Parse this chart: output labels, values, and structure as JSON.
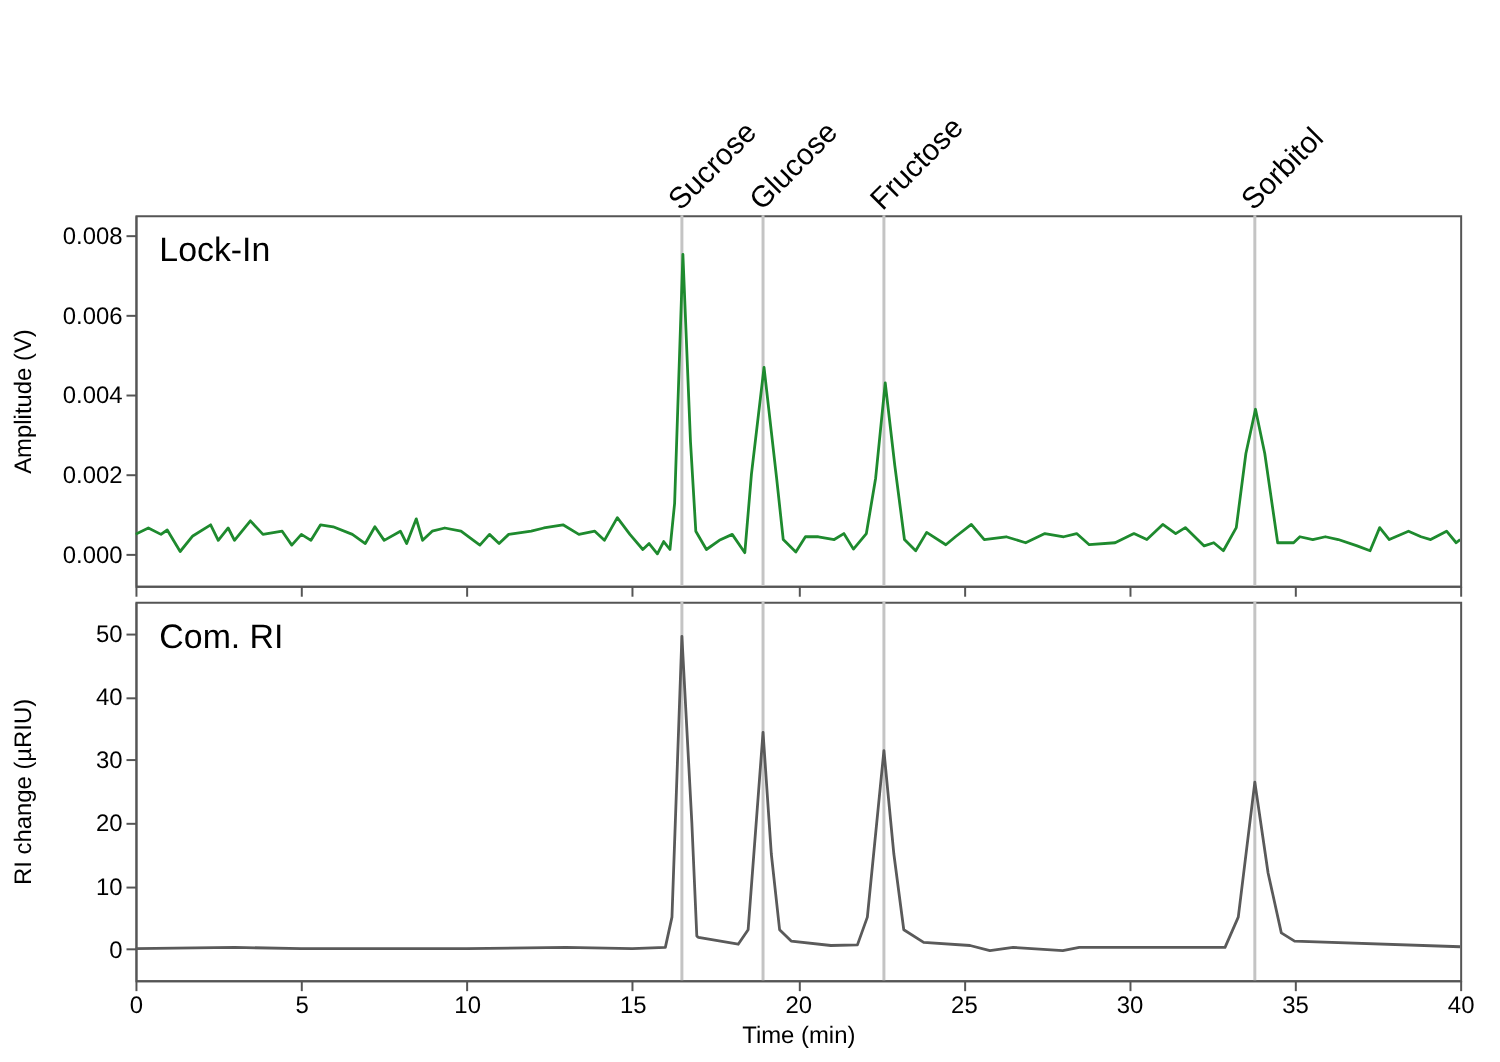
{
  "chart_data": [
    {
      "type": "line",
      "title": "Lock-In",
      "ylabel": "Amplitude (V)",
      "xlim": [
        0,
        40
      ],
      "xticks": [
        0,
        5,
        10,
        15,
        20,
        25,
        30,
        35,
        40
      ],
      "ylim": [
        -0.0008,
        0.0085
      ],
      "yticks": [
        {
          "value": 0,
          "label": "0.000"
        },
        0.002,
        0.004,
        0.006,
        0.008
      ],
      "tick_labels": "y",
      "grid": false,
      "marker": "none",
      "line_style": "solid",
      "series": [
        {
          "color": "#1e8a2e",
          "x": [
            0,
            0.39,
            0.77,
            0.96,
            1.35,
            1.73,
            2.27,
            2.5,
            2.8,
            2.99,
            3.47,
            3.85,
            4.43,
            4.72,
            5.01,
            5.3,
            5.59,
            5.97,
            6.55,
            6.94,
            7.23,
            7.51,
            8.0,
            8.19,
            8.48,
            8.67,
            8.96,
            9.34,
            9.83,
            10.4,
            10.69,
            10.98,
            11.27,
            11.95,
            12.33,
            12.91,
            13.39,
            13.87,
            14.16,
            14.55,
            14.93,
            15.32,
            15.51,
            15.76,
            15.95,
            16.14,
            16.28,
            16.53,
            16.76,
            16.92,
            17.24,
            17.63,
            18.02,
            18.4,
            18.6,
            18.98,
            19.36,
            19.56,
            19.94,
            20.23,
            20.62,
            21.1,
            21.39,
            21.68,
            22.07,
            22.35,
            22.64,
            22.93,
            23.22,
            23.56,
            23.89,
            24.47,
            24.76,
            25.24,
            25.63,
            26.29,
            26.88,
            27.46,
            28.03,
            28.42,
            28.8,
            29.58,
            30.15,
            30.54,
            31.02,
            31.41,
            31.7,
            32.27,
            32.56,
            32.85,
            33.24,
            33.53,
            33.82,
            34.1,
            34.49,
            34.97,
            35.16,
            35.55,
            35.93,
            36.32,
            36.89,
            37.28,
            37.57,
            37.86,
            38.44,
            38.82,
            39.11,
            39.59,
            39.88,
            40
          ],
          "values": [
            0.00049,
            0.00065,
            0.00049,
            0.0006,
            6e-05,
            0.00045,
            0.00073,
            0.00034,
            0.00065,
            0.00034,
            0.00083,
            0.00049,
            0.00057,
            0.00022,
            0.00049,
            0.00034,
            0.00073,
            0.00068,
            0.00049,
            0.00026,
            0.00068,
            0.00034,
            0.00057,
            0.00026,
            0.00088,
            0.00034,
            0.00057,
            0.00065,
            0.00057,
            0.00022,
            0.00049,
            0.00026,
            0.00049,
            0.00057,
            0.00065,
            0.00073,
            0.00049,
            0.00057,
            0.00034,
            0.00091,
            0.00049,
            0.00011,
            0.00026,
            0.0,
            0.00031,
            0.00011,
            0.00127,
            0.00752,
            0.00281,
            0.00057,
            0.00011,
            0.00034,
            0.00049,
            3e-05,
            0.002,
            0.00468,
            0.0019,
            0.00036,
            5e-05,
            0.00043,
            0.00043,
            0.00036,
            0.00051,
            0.00012,
            0.00051,
            0.0019,
            0.00429,
            0.00221,
            0.00036,
            8e-05,
            0.00054,
            0.00023,
            0.00043,
            0.00074,
            0.00036,
            0.00043,
            0.00028,
            0.00051,
            0.00043,
            0.00051,
            0.00023,
            0.00028,
            0.00051,
            0.00036,
            0.00074,
            0.00051,
            0.00066,
            0.0002,
            0.00028,
            8e-05,
            0.00066,
            0.00252,
            0.00363,
            0.00252,
            0.00028,
            0.00028,
            0.00043,
            0.00036,
            0.00043,
            0.00036,
            0.0002,
            8e-05,
            0.00066,
            0.00036,
            0.00057,
            0.00043,
            0.00036,
            0.00057,
            0.00028,
            0.00036
          ]
        }
      ],
      "ref_lines": [
        {
          "axis": "x",
          "value": 16.5,
          "label": "Sucrose",
          "color": "#c4c4c4"
        },
        {
          "axis": "x",
          "value": 18.95,
          "label": "Glucose",
          "color": "#c4c4c4"
        },
        {
          "axis": "x",
          "value": 22.6,
          "label": "Fructose",
          "color": "#c4c4c4"
        },
        {
          "axis": "x",
          "value": 33.8,
          "label": "Sorbitol",
          "color": "#c4c4c4"
        }
      ]
    },
    {
      "type": "line",
      "title": "Com. RI",
      "xlabel": "Time (min)",
      "ylabel": "RI change (µRIU)",
      "xlim": [
        0,
        40
      ],
      "xticks": [
        0,
        5,
        10,
        15,
        20,
        25,
        30,
        35,
        40
      ],
      "ylim": [
        -5,
        55
      ],
      "yticks": [
        0,
        10,
        20,
        30,
        40,
        50
      ],
      "grid": false,
      "marker": "none",
      "line_style": "solid",
      "series": [
        {
          "color": "#5a5a5a",
          "x": [
            0,
            3,
            5,
            10,
            13,
            15,
            16.0,
            16.2,
            16.5,
            16.8,
            16.95,
            17.0,
            18.2,
            18.5,
            18.95,
            19.2,
            19.45,
            19.8,
            21,
            21.8,
            22.1,
            22.6,
            22.9,
            23.2,
            23.8,
            25.2,
            25.8,
            26.5,
            28,
            28.5,
            32.9,
            33.3,
            33.8,
            34.2,
            34.6,
            35,
            40
          ],
          "values": [
            0,
            0.2,
            0,
            0,
            0.2,
            0,
            0.2,
            5,
            49.5,
            20,
            2,
            1.8,
            0.7,
            3,
            34.3,
            15,
            3,
            1.2,
            0.5,
            0.6,
            5,
            31.4,
            15,
            3,
            1,
            0.5,
            -0.3,
            0.2,
            -0.3,
            0.2,
            0.2,
            5,
            26.4,
            12,
            2.5,
            1.2,
            0.3
          ]
        }
      ],
      "ref_lines": [
        {
          "axis": "x",
          "value": 16.5,
          "color": "#c4c4c4"
        },
        {
          "axis": "x",
          "value": 18.95,
          "color": "#c4c4c4"
        },
        {
          "axis": "x",
          "value": 22.6,
          "color": "#c4c4c4"
        },
        {
          "axis": "x",
          "value": 33.8,
          "color": "#c4c4c4"
        }
      ]
    }
  ]
}
